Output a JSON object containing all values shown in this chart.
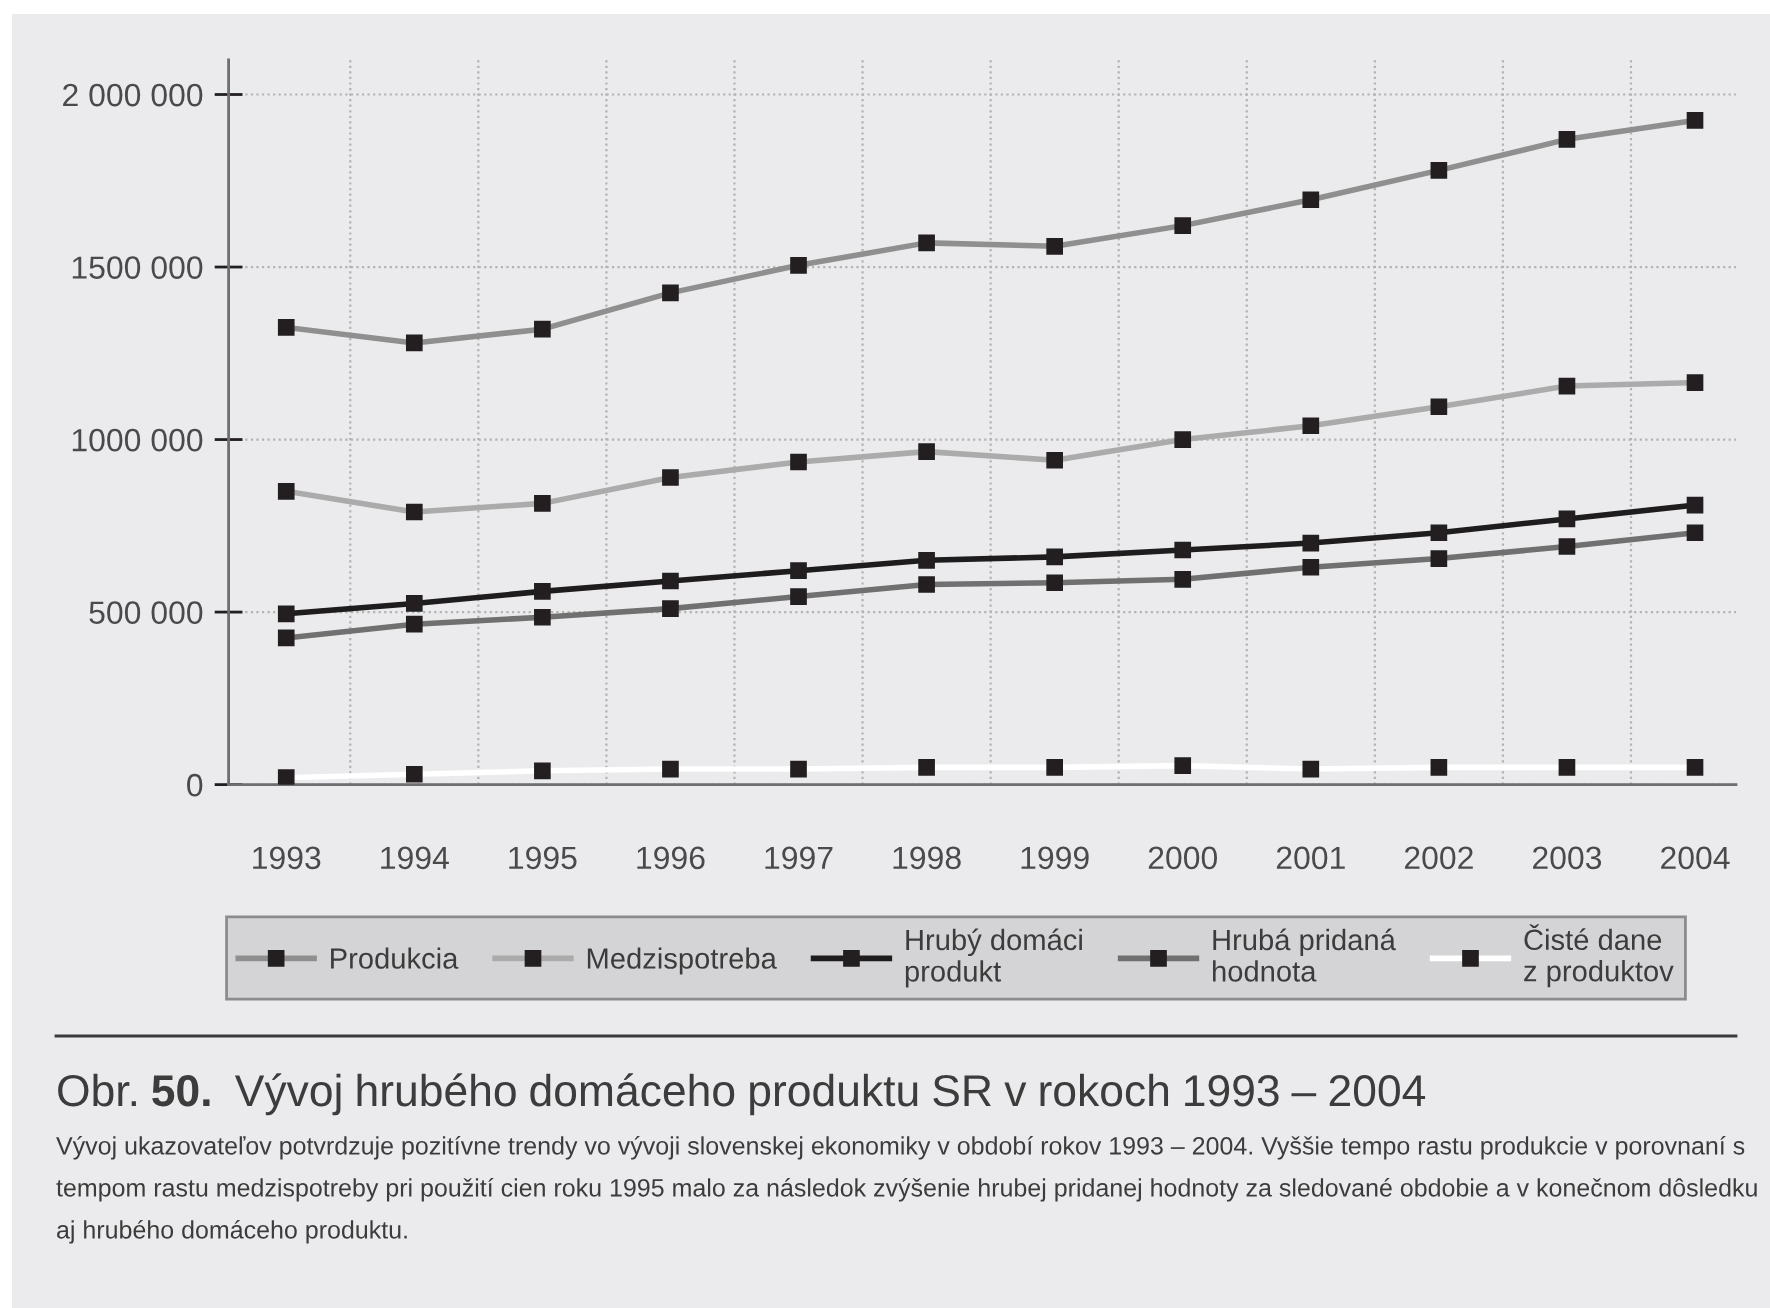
{
  "chart_data": {
    "type": "line",
    "title": "Obr. 50. Vývoj hrubého domáceho produktu SR v rokoch 1993 – 2004",
    "annotations": [
      "Vývoj ukazovateľov potvrdzuje pozitívne trendy vo vývoji slovenskej ekonomiky v období rokov 1993 – 2004. Vyššie tempo rastu produkcie v porovnaní s tempom rastu medzispotreby pri použití cien roku 1995 malo za následok zvýšenie hrubej pridanej hodnoty za sledované obdobie a v konečnom dôsledku aj hrubého domáceho produktu."
    ],
    "categories": [
      "1993",
      "1994",
      "1995",
      "1996",
      "1997",
      "1998",
      "1999",
      "2000",
      "2001",
      "2002",
      "2003",
      "2004"
    ],
    "series": [
      {
        "name": "Produkcia",
        "color": "#8f8f8f",
        "values": [
          1325000,
          1280000,
          1320000,
          1425000,
          1505000,
          1570000,
          1560000,
          1620000,
          1695000,
          1780000,
          1870000,
          1925000
        ]
      },
      {
        "name": "Medzispotreba",
        "color": "#ababab",
        "values": [
          850000,
          790000,
          815000,
          890000,
          935000,
          965000,
          940000,
          1000000,
          1040000,
          1095000,
          1155000,
          1165000
        ]
      },
      {
        "name": "Hrubý domáci\nprodukt",
        "color": "#1f1c1d",
        "values": [
          495000,
          525000,
          560000,
          590000,
          620000,
          650000,
          660000,
          680000,
          700000,
          730000,
          770000,
          810000
        ]
      },
      {
        "name": "Hrubá pridaná\nhodnota",
        "color": "#707070",
        "values": [
          425000,
          465000,
          485000,
          510000,
          545000,
          580000,
          585000,
          595000,
          630000,
          655000,
          690000,
          730000
        ]
      },
      {
        "name": "Čisté dane\nz produktov",
        "color": "#ffffff",
        "values": [
          20000,
          30000,
          40000,
          45000,
          45000,
          50000,
          50000,
          55000,
          45000,
          50000,
          50000,
          50000
        ]
      }
    ],
    "ylim": [
      0,
      2100000
    ],
    "yticks": [
      0,
      {
        "value": 500000,
        "label": "500 000"
      },
      {
        "value": 1000000,
        "label": "1000 000"
      },
      {
        "value": 1500000,
        "label": "1500 000"
      },
      {
        "value": 2000000,
        "label": "2 000 000"
      }
    ],
    "grid": true,
    "legend": "bottom",
    "marker": "square",
    "line_style": "solid"
  }
}
